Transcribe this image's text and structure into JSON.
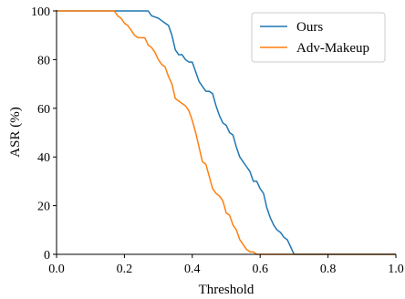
{
  "chart_data": {
    "type": "line",
    "xlabel": "Threshold",
    "ylabel": "ASR (%)",
    "xlim": [
      0.0,
      1.0
    ],
    "ylim": [
      0,
      100
    ],
    "xticks": [
      "0.0",
      "0.2",
      "0.4",
      "0.6",
      "0.8",
      "1.0"
    ],
    "yticks": [
      "0",
      "20",
      "40",
      "60",
      "80",
      "100"
    ],
    "grid": false,
    "legend_position": "top-right",
    "series": [
      {
        "name": "Ours",
        "color": "#1f77b4",
        "x": [
          0.0,
          0.27,
          0.28,
          0.3,
          0.31,
          0.32,
          0.33,
          0.34,
          0.35,
          0.36,
          0.37,
          0.38,
          0.39,
          0.4,
          0.41,
          0.42,
          0.43,
          0.44,
          0.45,
          0.46,
          0.47,
          0.48,
          0.49,
          0.5,
          0.51,
          0.52,
          0.53,
          0.54,
          0.55,
          0.56,
          0.57,
          0.58,
          0.59,
          0.6,
          0.61,
          0.62,
          0.63,
          0.64,
          0.65,
          0.66,
          0.67,
          0.68,
          0.69,
          0.7,
          1.0
        ],
        "y": [
          100,
          100,
          98,
          97,
          96,
          95,
          94,
          90,
          84,
          82,
          82,
          80,
          79,
          79,
          75,
          71,
          69,
          67,
          67,
          66,
          61,
          57,
          54,
          53,
          50,
          49,
          44,
          40,
          38,
          36,
          34,
          30,
          30,
          27,
          25,
          19,
          15,
          12,
          10,
          9,
          7,
          6,
          3,
          0,
          0
        ]
      },
      {
        "name": "Adv-Makeup",
        "color": "#ff7f0e",
        "x": [
          0.0,
          0.17,
          0.18,
          0.19,
          0.2,
          0.21,
          0.22,
          0.23,
          0.24,
          0.25,
          0.26,
          0.27,
          0.28,
          0.29,
          0.3,
          0.31,
          0.32,
          0.33,
          0.34,
          0.35,
          0.36,
          0.37,
          0.38,
          0.39,
          0.4,
          0.41,
          0.42,
          0.43,
          0.44,
          0.45,
          0.46,
          0.47,
          0.48,
          0.49,
          0.5,
          0.51,
          0.52,
          0.53,
          0.54,
          0.55,
          0.56,
          0.57,
          0.58,
          0.59,
          0.6,
          1.0
        ],
        "y": [
          100,
          100,
          98,
          97,
          95,
          94,
          92,
          90,
          89,
          89,
          89,
          86,
          85,
          83,
          80,
          78,
          77,
          73,
          70,
          64,
          63,
          62,
          61,
          59,
          55,
          50,
          44,
          38,
          37,
          32,
          27,
          25,
          24,
          22,
          17,
          16,
          12,
          10,
          6,
          4,
          2,
          1,
          1,
          0,
          0,
          0
        ]
      }
    ]
  }
}
